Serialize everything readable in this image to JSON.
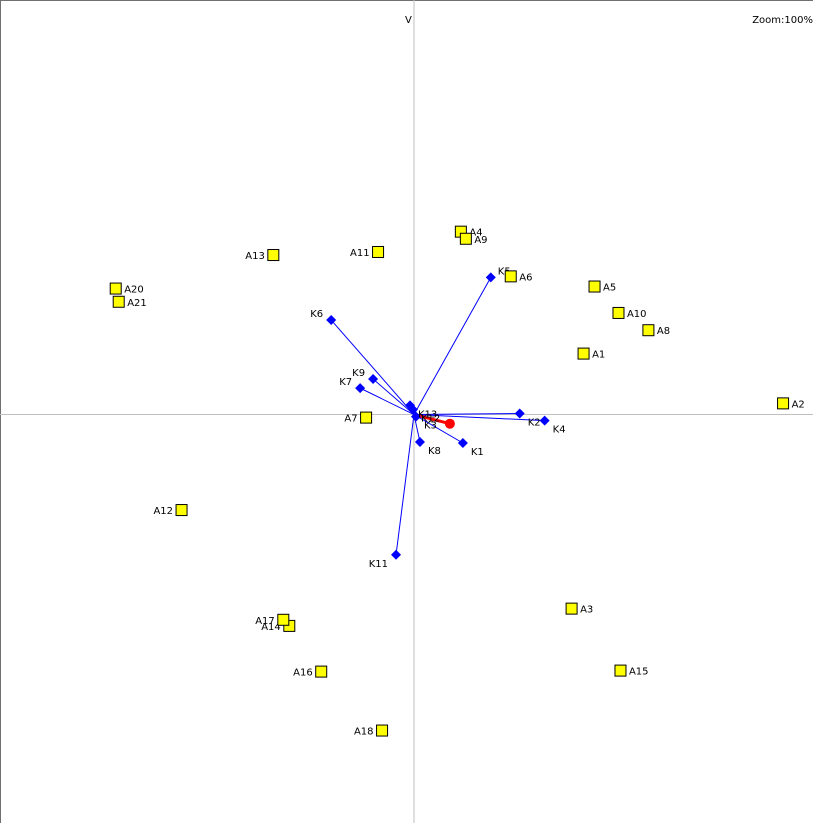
{
  "header": {
    "axis_label": "V",
    "zoom": "Zoom:100%"
  },
  "colors": {
    "objects": "#ffff00",
    "object_border": "#000000",
    "vectors": "#0000ff",
    "highlight": "#ff0000",
    "axes": "#c0c0c0"
  },
  "chart_data": {
    "type": "scatter",
    "title": "",
    "xlabel": "",
    "ylabel": "V",
    "xlim": [
      -415,
      400
    ],
    "ylim": [
      -402,
      408
    ],
    "grid": false,
    "series": [
      {
        "points": [
          {
            "label": "A1",
            "x": 170,
            "y": 60
          },
          {
            "label": "A2",
            "x": 370,
            "y": 11
          },
          {
            "label": "A3",
            "x": 158,
            "y": -191
          },
          {
            "label": "A4",
            "x": 47,
            "y": 180
          },
          {
            "label": "A5",
            "x": 181,
            "y": 126
          },
          {
            "label": "A6",
            "x": 97,
            "y": 136
          },
          {
            "label": "A7",
            "x": -48,
            "y": -3
          },
          {
            "label": "A8",
            "x": 235,
            "y": 83
          },
          {
            "label": "A9",
            "x": 52,
            "y": 173
          },
          {
            "label": "A10",
            "x": 205,
            "y": 100
          },
          {
            "label": "A11",
            "x": -36,
            "y": 160
          },
          {
            "label": "A12",
            "x": -233,
            "y": -94
          },
          {
            "label": "A13",
            "x": -141,
            "y": 157
          },
          {
            "label": "A14",
            "x": -125,
            "y": -208
          },
          {
            "label": "A15",
            "x": 207,
            "y": -252
          },
          {
            "label": "A16",
            "x": -93,
            "y": -253
          },
          {
            "label": "A17",
            "x": -131,
            "y": -202
          },
          {
            "label": "A18",
            "x": -32,
            "y": -311
          },
          {
            "label": "A20",
            "x": -299,
            "y": 124
          },
          {
            "label": "A21",
            "x": -296,
            "y": 111
          }
        ]
      },
      {
        "vectors": [
          {
            "label": "K1",
            "x": 49,
            "y": -28
          },
          {
            "label": "K2",
            "x": 106,
            "y": 1
          },
          {
            "label": "K3",
            "x": 2,
            "y": -2
          },
          {
            "label": "K4",
            "x": 131,
            "y": -6
          },
          {
            "label": "K5",
            "x": 77,
            "y": 135
          },
          {
            "label": "K6",
            "x": -83,
            "y": 93
          },
          {
            "label": "K7",
            "x": -54,
            "y": 26
          },
          {
            "label": "K8",
            "x": 6,
            "y": -27
          },
          {
            "label": "K9",
            "x": -41,
            "y": 35
          },
          {
            "label": "K11",
            "x": -18,
            "y": -138
          },
          {
            "label": "K12",
            "x": -1,
            "y": 5
          },
          {
            "label": "K13",
            "x": -4,
            "y": 9
          }
        ],
        "highlight": {
          "x": 36,
          "y": -9
        }
      }
    ]
  }
}
